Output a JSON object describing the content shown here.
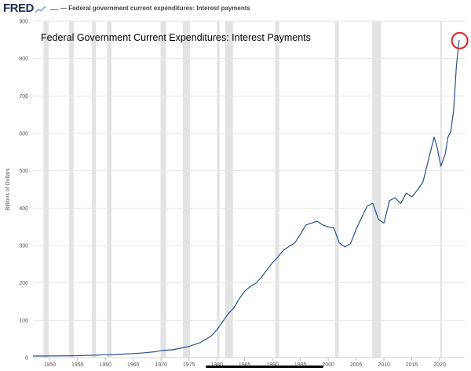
{
  "header": {
    "logo_text": "FRED",
    "logo_icon": "graph-mark-icon",
    "legend_label": "— Federal government current expenditures: Interest payments"
  },
  "colors": {
    "line": "#2b4f8a",
    "recession": "#e3e3e3",
    "grid": "#e6e6e6",
    "annotation_circle": "#e0202a"
  },
  "chart_data": {
    "type": "line",
    "title": "Federal Government Current Expenditures: Interest Payments",
    "xlabel": "",
    "ylabel": "Billions of Dollars",
    "xlim": [
      1947,
      2024.5
    ],
    "ylim": [
      0,
      900
    ],
    "y_ticks": [
      0,
      100,
      200,
      300,
      400,
      500,
      600,
      700,
      800,
      900
    ],
    "x_ticks": [
      1950,
      1955,
      1960,
      1965,
      1970,
      1975,
      1980,
      1985,
      1990,
      1995,
      2000,
      2005,
      2010,
      2015,
      2020
    ],
    "grid": true,
    "recessions": [
      [
        1948.9,
        1949.8
      ],
      [
        1953.5,
        1954.3
      ],
      [
        1957.6,
        1958.3
      ],
      [
        1960.3,
        1961.1
      ],
      [
        1969.9,
        1970.9
      ],
      [
        1973.9,
        1975.2
      ],
      [
        1980.0,
        1980.5
      ],
      [
        1981.5,
        1982.9
      ],
      [
        1990.5,
        1991.2
      ],
      [
        2001.2,
        2001.9
      ],
      [
        2007.9,
        2009.5
      ],
      [
        2020.1,
        2020.4
      ]
    ],
    "annotation": {
      "type": "circle",
      "x": 2023.6,
      "y": 848
    },
    "series": [
      {
        "values": [
          [
            1947,
            4.2
          ],
          [
            1950,
            4.5
          ],
          [
            1955,
            5.2
          ],
          [
            1958,
            6.5
          ],
          [
            1960,
            8.0
          ],
          [
            1961,
            8.2
          ],
          [
            1963,
            9.5
          ],
          [
            1965,
            11.0
          ],
          [
            1967,
            13.0
          ],
          [
            1969,
            16.0
          ],
          [
            1970,
            19.0
          ],
          [
            1972,
            21.0
          ],
          [
            1974,
            27.0
          ],
          [
            1975,
            30.0
          ],
          [
            1977,
            40.0
          ],
          [
            1979,
            58.0
          ],
          [
            1980,
            74.0
          ],
          [
            1981,
            95.0
          ],
          [
            1982,
            117.0
          ],
          [
            1983,
            132.0
          ],
          [
            1984,
            157.0
          ],
          [
            1985,
            178.0
          ],
          [
            1986,
            190.0
          ],
          [
            1987,
            199.0
          ],
          [
            1988,
            215.0
          ],
          [
            1989,
            235.0
          ],
          [
            1990,
            254.0
          ],
          [
            1991,
            270.0
          ],
          [
            1992,
            288.0
          ],
          [
            1993,
            298.0
          ],
          [
            1994,
            307.0
          ],
          [
            1995,
            330.0
          ],
          [
            1996,
            355.0
          ],
          [
            1997,
            360.0
          ],
          [
            1998,
            365.0
          ],
          [
            1999,
            355.0
          ],
          [
            2000,
            350.0
          ],
          [
            2001,
            347.0
          ],
          [
            2002,
            307.0
          ],
          [
            2003,
            296.0
          ],
          [
            2004,
            305.0
          ],
          [
            2005,
            343.0
          ],
          [
            2006,
            375.0
          ],
          [
            2007,
            405.0
          ],
          [
            2008,
            413.0
          ],
          [
            2009,
            370.0
          ],
          [
            2010,
            360.0
          ],
          [
            2011,
            420.0
          ],
          [
            2012,
            428.0
          ],
          [
            2013,
            412.0
          ],
          [
            2014,
            440.0
          ],
          [
            2015,
            430.0
          ],
          [
            2016,
            448.0
          ],
          [
            2017,
            470.0
          ],
          [
            2018,
            530.0
          ],
          [
            2019,
            590.0
          ],
          [
            2019.6,
            560.0
          ],
          [
            2020.2,
            512.0
          ],
          [
            2021,
            545.0
          ],
          [
            2021.5,
            590.0
          ],
          [
            2022,
            605.0
          ],
          [
            2022.5,
            660.0
          ],
          [
            2023,
            780.0
          ],
          [
            2023.5,
            850.0
          ]
        ]
      }
    ]
  }
}
